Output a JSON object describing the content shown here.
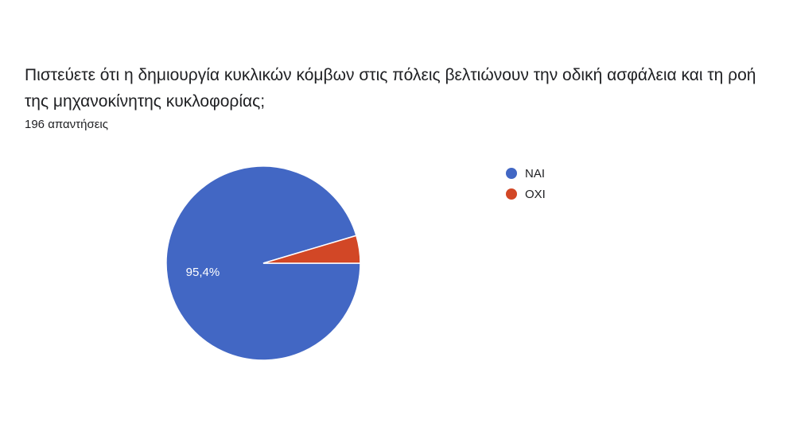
{
  "question": {
    "title": "Πιστεύετε ότι η δημιουργία κυκλικών κόμβων στις πόλεις βελτιώνουν την οδική ασφάλεια και τη ροή της μηχανοκίνητης κυκλοφορίας;",
    "response_count": "196 απαντήσεις"
  },
  "chart_data": {
    "type": "pie",
    "categories": [
      "ΝΑΙ",
      "ΟΧΙ"
    ],
    "values": [
      95.4,
      4.6
    ],
    "colors": [
      "#4267c4",
      "#d24726"
    ],
    "data_labels": [
      "95,4%",
      ""
    ],
    "legend_position": "right",
    "legend": [
      {
        "label": "ΝΑΙ",
        "color": "#4267c4"
      },
      {
        "label": "ΟΧΙ",
        "color": "#d24726"
      }
    ]
  }
}
